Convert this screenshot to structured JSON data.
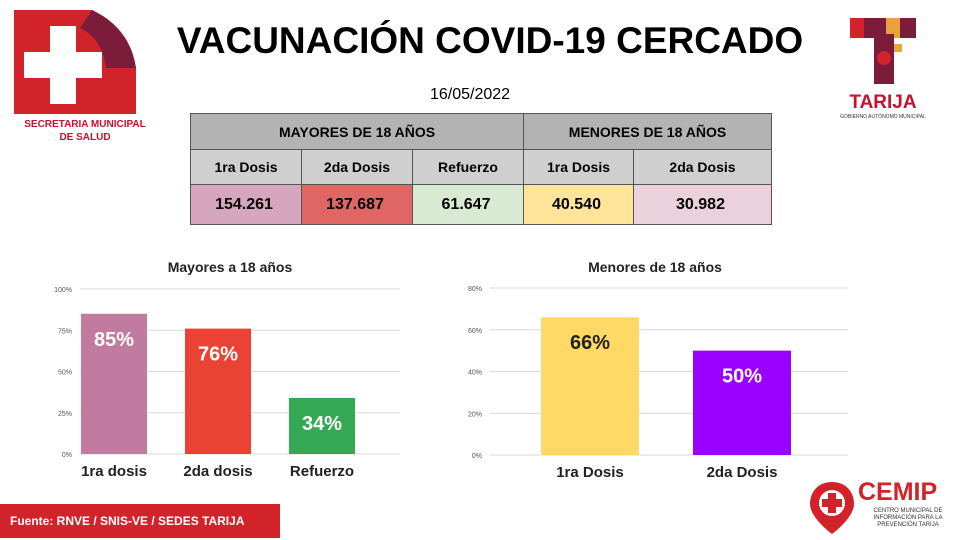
{
  "header": {
    "title": "VACUNACIÓN COVID-19 CERCADO",
    "date": "16/05/2022",
    "logo_left": {
      "line1": "SECRETARIA MUNICIPAL",
      "line2": "DE SALUD"
    },
    "logo_right": {
      "name": "TARIJA",
      "sub": "GOBIERNO AUTÓNOMO MUNICIPAL"
    }
  },
  "summary_table": {
    "groups": [
      "MAYORES DE 18 AÑOS",
      "MENORES DE 18 AÑOS"
    ],
    "columns": [
      "1ra Dosis",
      "2da Dosis",
      "Refuerzo",
      "1ra Dosis",
      "2da Dosis"
    ],
    "values": [
      "154.261",
      "137.687",
      "61.647",
      "40.540",
      "30.982"
    ],
    "colors": [
      "#d5a6bd",
      "#e06666",
      "#d9ead3",
      "#ffe599",
      "#ead1dc"
    ]
  },
  "chart_data": [
    {
      "type": "bar",
      "title": "Mayores a 18 años",
      "categories": [
        "1ra dosis",
        "2da dosis",
        "Refuerzo"
      ],
      "values": [
        85,
        76,
        34
      ],
      "labels": [
        "85%",
        "76%",
        "34%"
      ],
      "colors": [
        "#c27ba0",
        "#ea4335",
        "#34a853"
      ],
      "ylim": [
        0,
        100
      ],
      "yticks": [
        "0%",
        "25%",
        "50%",
        "75%",
        "100%"
      ],
      "ytick_values": [
        0,
        25,
        50,
        75,
        100
      ],
      "grid": true
    },
    {
      "type": "bar",
      "title": "Menores de 18 años",
      "categories": [
        "1ra Dosis",
        "2da Dosis"
      ],
      "values": [
        66,
        50
      ],
      "labels": [
        "66%",
        "50%"
      ],
      "colors": [
        "#ffd966",
        "#9900ff"
      ],
      "ylim": [
        0,
        80
      ],
      "yticks": [
        "0%",
        "20%",
        "40%",
        "60%",
        "80%"
      ],
      "ytick_values": [
        0,
        20,
        40,
        60,
        80
      ],
      "grid": true
    }
  ],
  "footer": {
    "source": "Fuente: RNVE / SNIS-VE / SEDES TARIJA",
    "cemip_name": "CEMIP",
    "cemip_sub": "CENTRO MUNICIPAL DE INFORMACIÓN PARA LA PREVENCIÓN TARIJA"
  }
}
